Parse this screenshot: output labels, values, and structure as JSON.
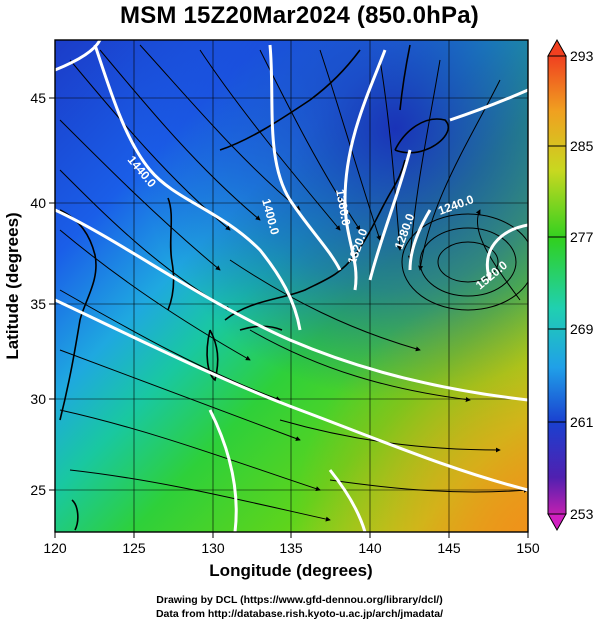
{
  "title": "MSM 15Z20Mar2024 (850.0hPa)",
  "map": {
    "xlabel": "Longitude (degrees)",
    "ylabel": "Latitude  (degrees)",
    "x_ticks": [
      "120",
      "125",
      "130",
      "135",
      "140",
      "145",
      "150"
    ],
    "y_ticks": [
      "25",
      "30",
      "35",
      "40",
      "45"
    ],
    "lon_range": [
      120,
      150
    ],
    "lat_range": [
      22.4,
      47.6
    ],
    "contour_labels": [
      "1440.0",
      "1400.0",
      "1360.0",
      "1320.0",
      "1280.0",
      "1240.0",
      "1520.0"
    ]
  },
  "colorbar": {
    "labels": [
      "293",
      "285",
      "277",
      "269",
      "261",
      "253"
    ],
    "range": [
      253,
      293
    ]
  },
  "credits": {
    "line1": "Drawing by DCL (https://www.gfd-dennou.org/library/dcl/)",
    "line2": "Data from http://database.rish.kyoto-u.ac.jp/arch/jmadata/"
  }
}
